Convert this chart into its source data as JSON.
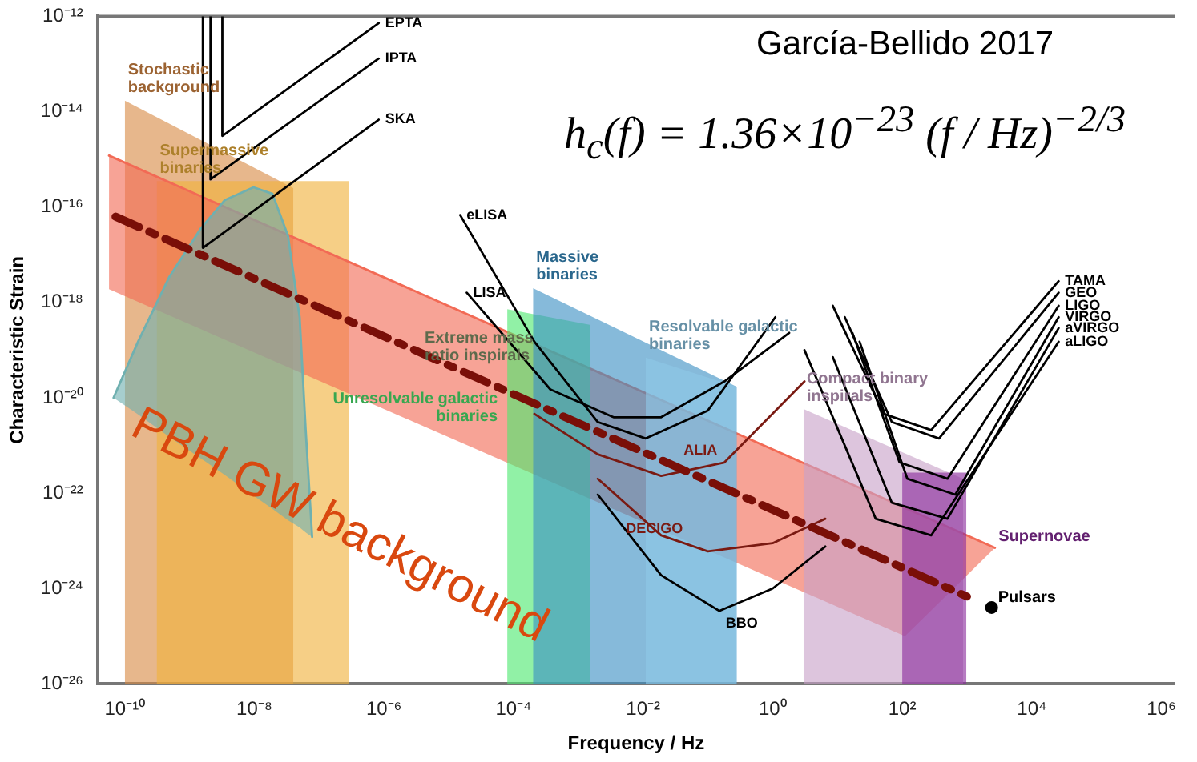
{
  "chart_data": {
    "type": "line",
    "xlabel": "Frequency / Hz",
    "ylabel": "Characteristic Strain",
    "log": "xy",
    "grid": false,
    "legend": false,
    "xlim": [
      3.8e-11,
      1600000.0
    ],
    "ylim": [
      1e-26,
      1e-12
    ],
    "xticks": [
      {
        "value": 1e-10,
        "label": "10⁻¹⁰"
      },
      {
        "value": 1e-08,
        "label": "10⁻⁸"
      },
      {
        "value": 1e-06,
        "label": "10⁻⁶"
      },
      {
        "value": 0.0001,
        "label": "10⁻⁴"
      },
      {
        "value": 0.01,
        "label": "10⁻²"
      },
      {
        "value": 1,
        "label": "10⁰"
      },
      {
        "value": 100,
        "label": "10²"
      },
      {
        "value": 10000,
        "label": "10⁴"
      },
      {
        "value": 1000000.0,
        "label": "10⁶"
      }
    ],
    "yticks": [
      {
        "value": 1e-26,
        "label": "10⁻²⁶"
      },
      {
        "value": 1e-24,
        "label": "10⁻²⁴"
      },
      {
        "value": 1e-22,
        "label": "10⁻²²"
      },
      {
        "value": 1e-20,
        "label": "10⁻²⁰"
      },
      {
        "value": 1e-18,
        "label": "10⁻¹⁸"
      },
      {
        "value": 1e-16,
        "label": "10⁻¹⁶"
      },
      {
        "value": 1e-14,
        "label": "10⁻¹⁴"
      },
      {
        "value": 1e-12,
        "label": "10⁻¹²"
      }
    ],
    "annotations": [
      "García-Bellido 2017",
      "h$_{c}$(f) = 1.36×10$^{−23}$ (f / Hz)$^{−2/3}$",
      "PBH GW background",
      "Extreme mass ratio inspirals"
    ],
    "series": [
      {
        "type": "area",
        "name": "Stochastic background",
        "color": "#d98a45",
        "x": [
          1e-10,
          4e-08
        ],
        "values": [
          1.7e-14,
          2.5e-16
        ]
      },
      {
        "type": "area",
        "name": "Supermassive binaries",
        "color": "#f0b23c",
        "x": [
          3.1e-10,
          2.9e-07
        ],
        "values": [
          3.5e-16,
          3.5e-16
        ]
      },
      {
        "color": "#f26a55",
        "x": [
          5.7e-11,
          110,
          2700
        ],
        "values": [
          1.2e-15,
          4.9e-23,
          7.1e-24
        ],
        "upper": [
          1.2e-15,
          4.9e-23,
          7.1e-24
        ],
        "lower": [
          1.9e-18,
          1e-25,
          7.1e-24
        ]
      },
      {
        "color": "#6fb0b0",
        "x": [
          6.7e-11,
          1.6e-10,
          4.9e-10,
          1.5e-09,
          3.5e-09,
          9.7e-09,
          1.9e-08,
          3.3e-08,
          5e-08,
          6.2e-08,
          7.8e-08
        ],
        "values": [
          1e-20,
          1.5e-19,
          3.5e-18,
          3.6e-17,
          1.4e-16,
          2.6e-16,
          1.9e-16,
          2.5e-17,
          4.9e-19,
          2.1e-21,
          1.2e-23
        ],
        "upper": [
          1e-20,
          1.5e-19,
          3.5e-18,
          3.6e-17,
          1.4e-16,
          2.6e-16,
          1.9e-16,
          2.5e-17,
          4.9e-19,
          2.1e-21,
          1.2e-23
        ],
        "lower": [
          1e-20,
          4.5e-21,
          1.5e-21,
          5.3e-22,
          2.4e-22,
          8.9e-23,
          4.7e-23,
          2.7e-23,
          1.9e-23,
          1.5e-23,
          1.2e-23
        ]
      },
      {
        "type": "area",
        "name": "Unresolvable galactic binaries",
        "color": "#4ee86f",
        "x": [
          8e-05,
          0.0015
        ],
        "values": [
          7.2e-19,
          3.4e-19
        ]
      },
      {
        "type": "area",
        "name": "Massive binaries",
        "color": "#3b8fc4",
        "x": [
          0.0002,
          0.28
        ],
        "values": [
          2e-18,
          1.7e-20
        ]
      },
      {
        "type": "area",
        "name": "Resolvable galactic binaries",
        "color": "#8ec8e6",
        "x": [
          0.011,
          0.28
        ],
        "values": [
          7e-20,
          1.7e-20
        ]
      },
      {
        "type": "area",
        "name": "Compact binary inspirals",
        "color": "#c8a2c8",
        "x": [
          3,
          870
        ],
        "values": [
          5.8e-21,
          2e-22
        ]
      },
      {
        "type": "area",
        "name": "Supernovae",
        "color": "#8a2c9c",
        "x": [
          100,
          980
        ],
        "values": [
          2.7e-22,
          2.7e-22
        ]
      },
      {
        "name": "EPTA",
        "color": "#000000",
        "x": [
          3.2e-09,
          3.2e-09,
          8.3e-07
        ],
        "values": [
          1e-12,
          3.1e-15,
          7.2e-13
        ]
      },
      {
        "name": "IPTA",
        "color": "#000000",
        "x": [
          2.1e-09,
          2.1e-09,
          8.3e-07
        ],
        "values": [
          1e-12,
          3.8e-16,
          1.3e-13
        ]
      },
      {
        "name": "SKA",
        "color": "#000000",
        "x": [
          1.6e-09,
          1.6e-09,
          8.3e-07
        ],
        "values": [
          1e-12,
          1.4e-17,
          6.8e-15
        ]
      },
      {
        "name": "eLISA",
        "color": "#000000",
        "x": [
          1.1,
          0.1,
          0.011,
          0.002,
          0.00021,
          1.5e-05
        ],
        "values": [
          4.9e-19,
          5.4e-21,
          1.4e-21,
          3.1e-21,
          1.5e-19,
          6.8e-17
        ]
      },
      {
        "name": "LISA",
        "color": "#000000",
        "x": [
          1.8,
          0.18,
          0.019,
          0.0035,
          0.00037,
          1.9e-05
        ],
        "values": [
          2.3e-19,
          2.2e-20,
          3.9e-21,
          3.9e-21,
          1.5e-20,
          1.6e-18
        ]
      },
      {
        "name": "ALIA",
        "color": "#7a1a12",
        "x": [
          0.00021,
          0.002,
          0.019,
          0.18,
          3.1
        ],
        "values": [
          4.6e-21,
          6.5e-22,
          2.3e-22,
          4.4e-22,
          2.2e-20
        ]
      },
      {
        "name": "DECIGO",
        "color": "#7a1a12",
        "x": [
          0.002,
          0.019,
          0.1,
          1,
          6.5
        ],
        "values": [
          2e-22,
          1.3e-23,
          6e-24,
          8.9e-24,
          2.9e-23
        ]
      },
      {
        "name": "BBO",
        "color": "#000000",
        "x": [
          0.002,
          0.019,
          0.15,
          1,
          6.5
        ],
        "values": [
          9.3e-23,
          1.9e-24,
          3.4e-25,
          1e-24,
          7.6e-24
        ]
      },
      {
        "name": "TAMA",
        "color": "#000000",
        "x": [
          8.5,
          52,
          280,
          26000
        ],
        "values": [
          8.5e-19,
          4.6e-21,
          2.1e-21,
          2.8e-18
        ]
      },
      {
        "name": "GEO",
        "color": "#000000",
        "x": [
          13,
          69,
          370,
          26000
        ],
        "values": [
          4.9e-19,
          3.1e-21,
          1.4e-21,
          1.6e-18
        ]
      },
      {
        "name": "LIGO",
        "color": "#000000",
        "x": [
          17,
          91,
          500,
          26000
        ],
        "values": [
          2.3e-19,
          4.4e-22,
          2e-22,
          8.5e-19
        ]
      },
      {
        "name": "VIRGO",
        "color": "#000000",
        "x": [
          22,
          120,
          660,
          26000
        ],
        "values": [
          1.5e-19,
          2e-22,
          9.3e-23,
          4.9e-19
        ]
      },
      {
        "name": "aVIRGO",
        "color": "#000000",
        "x": [
          8.5,
          69,
          500,
          26000
        ],
        "values": [
          7.1e-20,
          6.3e-23,
          2.9e-23,
          2.9e-19
        ]
      },
      {
        "name": "aLIGO",
        "color": "#000000",
        "x": [
          3.1,
          39,
          280,
          26000
        ],
        "values": [
          1e-19,
          2.9e-23,
          1.3e-23,
          1.5e-19
        ]
      },
      {
        "color": "#7a0f08",
        "line_style": "dashed",
        "x": [
          7.2e-11,
          1000
        ],
        "values": [
          6.3e-17,
          6.8e-25
        ]
      },
      {
        "type": "scatter",
        "name": "Pulsars",
        "color": "#000000",
        "marker": "circle",
        "x": [
          2400
        ],
        "values": [
          4e-25
        ]
      }
    ]
  }
}
